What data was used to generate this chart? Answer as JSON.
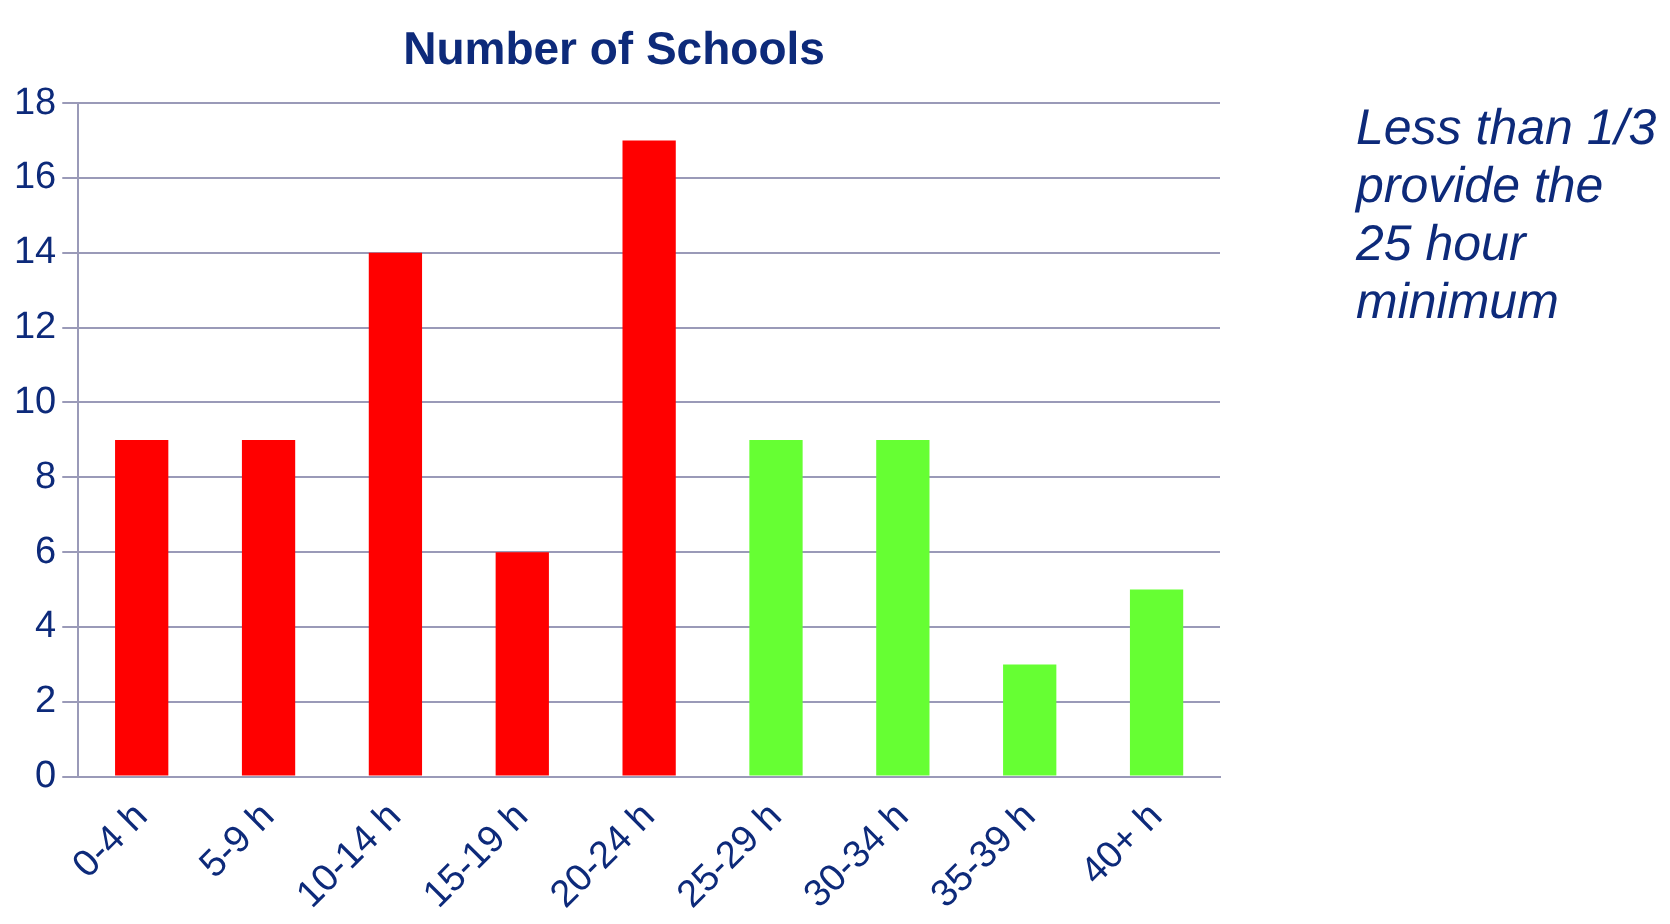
{
  "chart_data": {
    "type": "bar",
    "title": "Number of Schools",
    "categories": [
      "0-4 h",
      "5-9 h",
      "10-14 h",
      "15-19 h",
      "20-24 h",
      "25-29 h",
      "30-34 h",
      "35-39 h",
      "40+ h"
    ],
    "values": [
      9,
      9,
      14,
      6,
      17,
      9,
      9,
      3,
      5
    ],
    "colors": [
      "#ff0000",
      "#ff0000",
      "#ff0000",
      "#ff0000",
      "#ff0000",
      "#66ff33",
      "#66ff33",
      "#66ff33",
      "#66ff33"
    ],
    "ylim": [
      0,
      18
    ],
    "yticks": [
      0,
      2,
      4,
      6,
      8,
      10,
      12,
      14,
      16,
      18
    ],
    "grid": "y",
    "legend": false,
    "annotations": [
      "Less than 1/3 provide the 25 hour minimum"
    ]
  }
}
